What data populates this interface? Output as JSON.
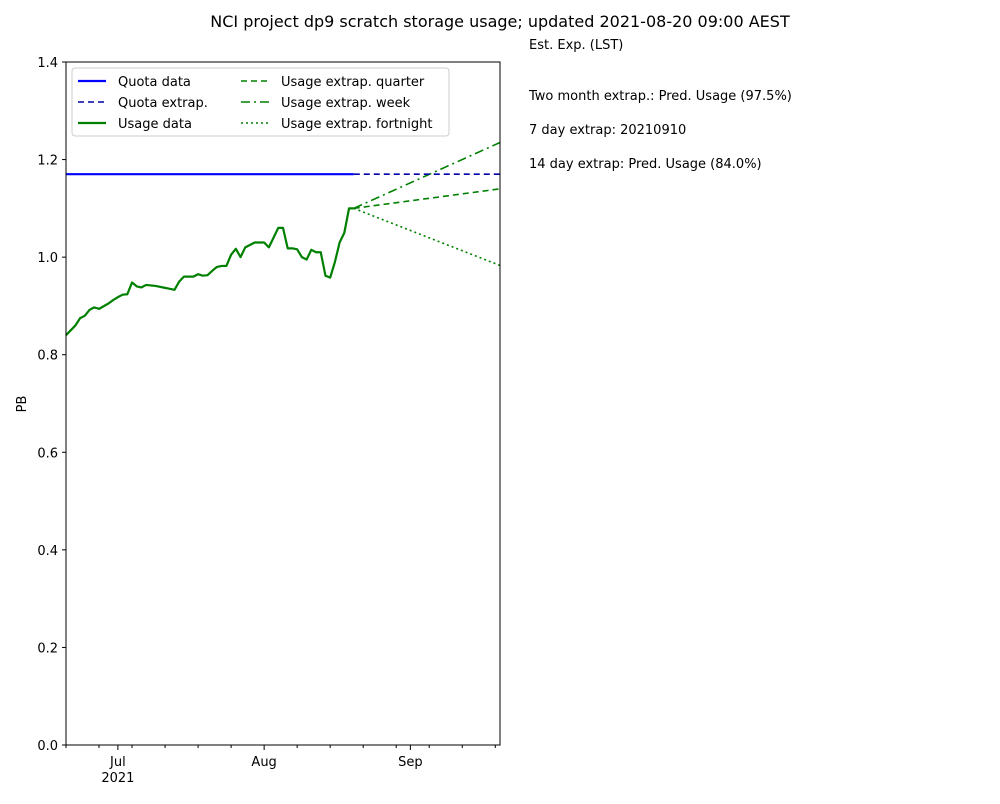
{
  "chart_data": {
    "type": "line",
    "title": "NCI project dp9 scratch storage usage; updated 2021-08-20 09:00 AEST",
    "ylabel": "PB",
    "xlabel": "",
    "xlim": [
      "2021-06-20",
      "2021-09-20"
    ],
    "ylim": [
      0,
      1.4
    ],
    "yticks": [
      0.0,
      0.2,
      0.4,
      0.6,
      0.8,
      1.0,
      1.2,
      1.4
    ],
    "ytick_labels": [
      "0.0",
      "0.2",
      "0.4",
      "0.6",
      "0.8",
      "1.0",
      "1.2",
      "1.4"
    ],
    "xticks_major": [
      {
        "date": "2021-07-01",
        "label": "Jul",
        "sublabel": "2021"
      },
      {
        "date": "2021-08-01",
        "label": "Aug",
        "sublabel": ""
      },
      {
        "date": "2021-09-01",
        "label": "Sep",
        "sublabel": ""
      }
    ],
    "xticks_minor": [
      "2021-06-20",
      "2021-06-27",
      "2021-07-04",
      "2021-07-11",
      "2021-07-18",
      "2021-07-25",
      "2021-08-08",
      "2021-08-15",
      "2021-08-22",
      "2021-08-29",
      "2021-09-05",
      "2021-09-12",
      "2021-09-19"
    ],
    "grid": false,
    "legend": {
      "placement": "top-left",
      "columns": 2
    },
    "series": [
      {
        "name": "Quota data",
        "color": "#0000ff",
        "style": "solid",
        "width": 2.2,
        "x": [
          "2021-06-20",
          "2021-08-20"
        ],
        "y": [
          1.17,
          1.17
        ]
      },
      {
        "name": "Quota extrap.",
        "color": "#0000aa",
        "style": "dashed",
        "width": 1.6,
        "x": [
          "2021-08-20",
          "2021-09-20"
        ],
        "y": [
          1.17,
          1.17
        ]
      },
      {
        "name": "Usage data",
        "color": "#008000",
        "style": "solid",
        "width": 2.2,
        "x": [
          "2021-06-20",
          "2021-06-22",
          "2021-06-23",
          "2021-06-24",
          "2021-06-25",
          "2021-06-26",
          "2021-06-27",
          "2021-06-29",
          "2021-06-30",
          "2021-07-01",
          "2021-07-02",
          "2021-07-03",
          "2021-07-04",
          "2021-07-05",
          "2021-07-06",
          "2021-07-07",
          "2021-07-09",
          "2021-07-11",
          "2021-07-12",
          "2021-07-13",
          "2021-07-14",
          "2021-07-15",
          "2021-07-16",
          "2021-07-17",
          "2021-07-18",
          "2021-07-19",
          "2021-07-20",
          "2021-07-21",
          "2021-07-22",
          "2021-07-23",
          "2021-07-24",
          "2021-07-25",
          "2021-07-26",
          "2021-07-27",
          "2021-07-28",
          "2021-07-30",
          "2021-07-31",
          "2021-08-01",
          "2021-08-02",
          "2021-08-03",
          "2021-08-04",
          "2021-08-05",
          "2021-08-06",
          "2021-08-07",
          "2021-08-08",
          "2021-08-09",
          "2021-08-10",
          "2021-08-11",
          "2021-08-12",
          "2021-08-13",
          "2021-08-14",
          "2021-08-15",
          "2021-08-16",
          "2021-08-17",
          "2021-08-18",
          "2021-08-19",
          "2021-08-20"
        ],
        "y": [
          0.84,
          0.86,
          0.875,
          0.88,
          0.892,
          0.897,
          0.894,
          0.905,
          0.912,
          0.918,
          0.923,
          0.924,
          0.948,
          0.94,
          0.938,
          0.943,
          0.941,
          0.937,
          0.935,
          0.933,
          0.95,
          0.96,
          0.96,
          0.96,
          0.965,
          0.962,
          0.963,
          0.972,
          0.98,
          0.982,
          0.982,
          1.005,
          1.017,
          1.0,
          1.02,
          1.03,
          1.03,
          1.03,
          1.02,
          1.04,
          1.06,
          1.06,
          1.018,
          1.018,
          1.016,
          1.0,
          0.995,
          1.015,
          1.01,
          1.01,
          0.962,
          0.958,
          0.99,
          1.03,
          1.05,
          1.1,
          1.1
        ]
      },
      {
        "name": "Usage extrap. quarter",
        "color": "#008000",
        "style": "dashed",
        "width": 1.6,
        "x": [
          "2021-08-20",
          "2021-09-20"
        ],
        "y": [
          1.1,
          1.14
        ]
      },
      {
        "name": "Usage extrap. week",
        "color": "#008000",
        "style": "dashdot",
        "width": 1.6,
        "x": [
          "2021-08-20",
          "2021-09-20"
        ],
        "y": [
          1.1,
          1.235
        ]
      },
      {
        "name": "Usage extrap. fortnight",
        "color": "#008000",
        "style": "dotted",
        "width": 1.6,
        "x": [
          "2021-08-20",
          "2021-09-20"
        ],
        "y": [
          1.1,
          0.983
        ]
      }
    ],
    "annotations": [
      "Est. Exp. (LST)",
      "Two month extrap.: Pred. Usage (97.5%)",
      "7 day extrap: 20210910",
      "14 day extrap: Pred. Usage (84.0%)"
    ]
  }
}
